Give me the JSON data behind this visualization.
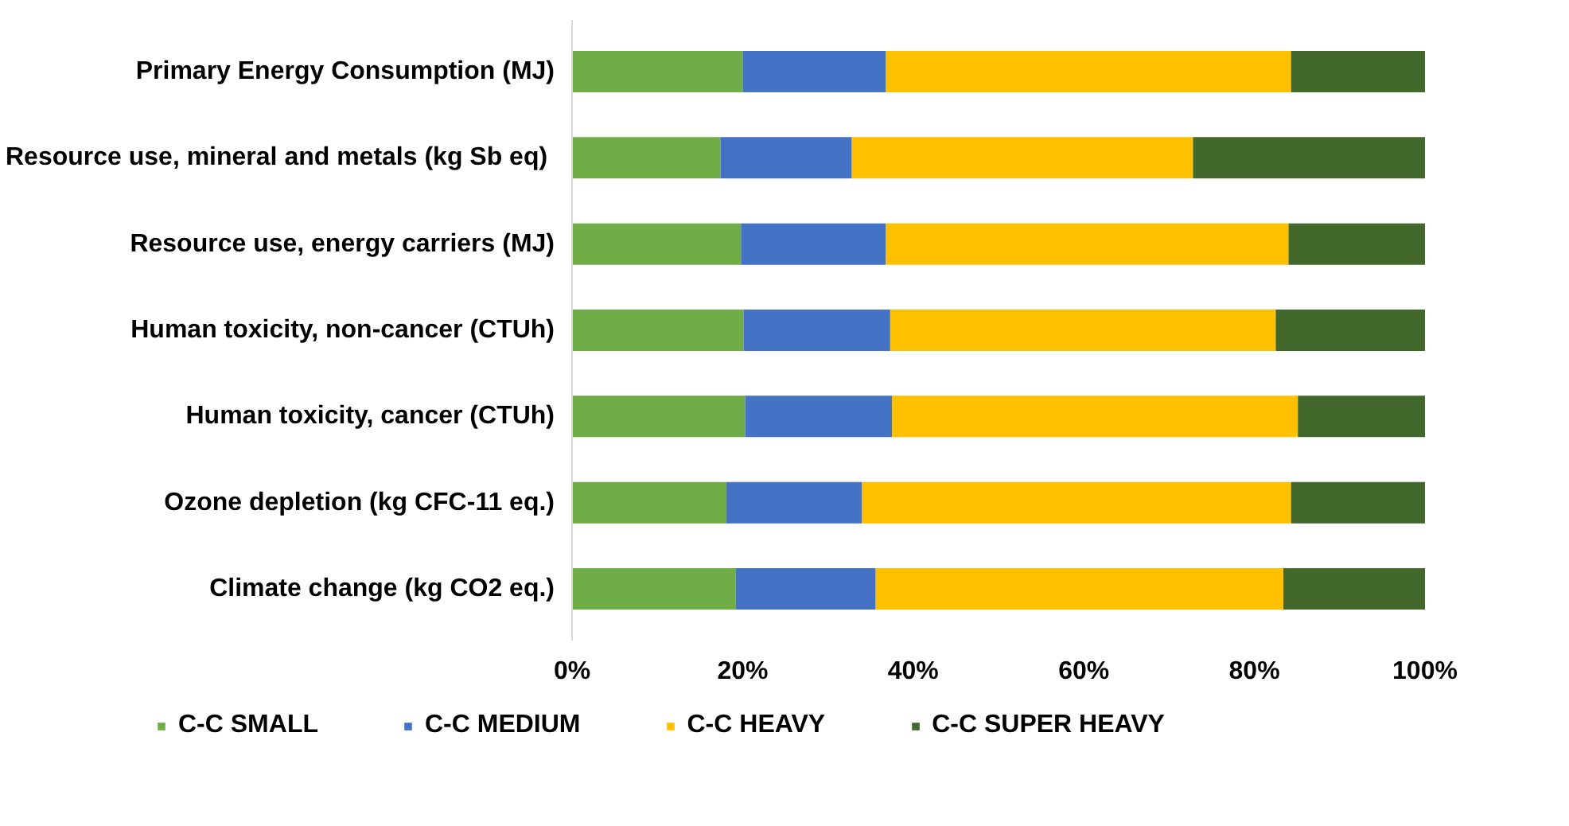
{
  "chart_data": {
    "type": "bar",
    "orientation": "horizontal",
    "stacked": true,
    "categories": [
      "Primary Energy Consumption (MJ)",
      "Resource use, mineral and metals  (kg Sb eq)",
      "Resource use, energy carriers (MJ)",
      "Human toxicity, non-cancer (CTUh)",
      "Human toxicity, cancer (CTUh)",
      "Ozone depletion (kg CFC-11 eq.)",
      "Climate change (kg CO2 eq.)"
    ],
    "series": [
      {
        "name": "C-C SMALL",
        "color": "#70ad47",
        "values": [
          20.0,
          17.4,
          19.8,
          20.1,
          20.3,
          18.1,
          19.2
        ]
      },
      {
        "name": "C-C MEDIUM",
        "color": "#4472c4",
        "values": [
          16.8,
          15.4,
          17.0,
          17.2,
          17.2,
          15.9,
          16.4
        ]
      },
      {
        "name": "C-C HEAVY",
        "color": "#ffc000",
        "values": [
          47.5,
          40.0,
          47.2,
          45.2,
          47.6,
          50.3,
          47.8
        ]
      },
      {
        "name": "C-C SUPER HEAVY",
        "color": "#43682b",
        "values": [
          15.7,
          27.2,
          16.0,
          17.5,
          14.9,
          15.7,
          16.6
        ]
      }
    ],
    "xlim": [
      0,
      100
    ],
    "xticks": [
      {
        "value": 0,
        "label": "0%"
      },
      {
        "value": 20,
        "label": "20%"
      },
      {
        "value": 40,
        "label": "40%"
      },
      {
        "value": 60,
        "label": "60%"
      },
      {
        "value": 80,
        "label": "80%"
      },
      {
        "value": 100,
        "label": "100%"
      }
    ],
    "grid": false,
    "legend": "bottom"
  }
}
